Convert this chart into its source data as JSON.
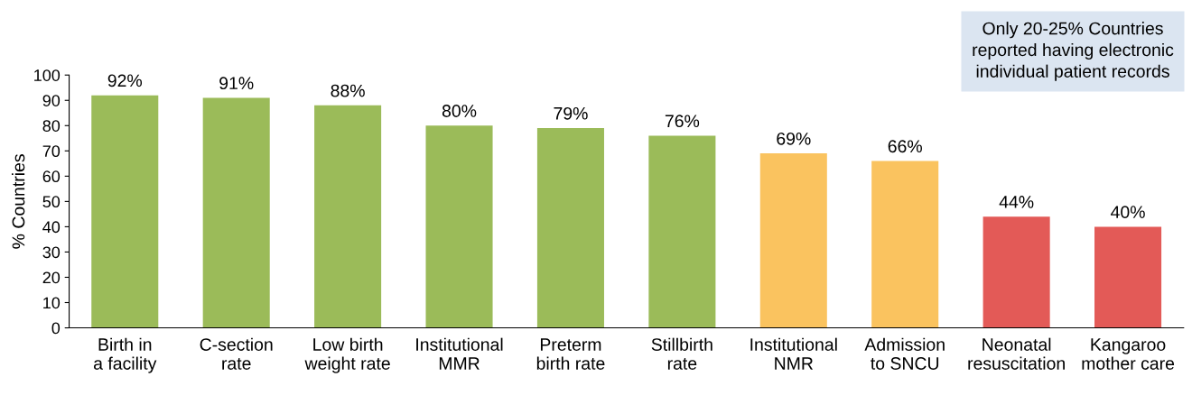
{
  "chart_data": {
    "type": "bar",
    "ylabel": "% Countries",
    "categories": [
      "Birth in\na facility",
      "C-section\nrate",
      "Low birth\nweight rate",
      "Institutional\nMMR",
      "Preterm\nbirth rate",
      "Stillbirth\nrate",
      "Institutional\nNMR",
      "Admission\nto SNCU",
      "Neonatal\nresuscitation",
      "Kangaroo\nmother care"
    ],
    "values": [
      92,
      91,
      88,
      80,
      79,
      76,
      69,
      66,
      44,
      40
    ],
    "value_labels": [
      "92%",
      "91%",
      "88%",
      "80%",
      "79%",
      "76%",
      "69%",
      "66%",
      "44%",
      "40%"
    ],
    "colors": [
      "#9bbb59",
      "#9bbb59",
      "#9bbb59",
      "#9bbb59",
      "#9bbb59",
      "#9bbb59",
      "#fac35f",
      "#fac35f",
      "#e35a57",
      "#e35a57"
    ],
    "ylim": [
      0,
      100
    ],
    "yticks": [
      0,
      10,
      20,
      30,
      40,
      50,
      60,
      70,
      80,
      90,
      100
    ],
    "grid": false,
    "annotations": [
      "Only 20-25% Countries\nreported having electronic\nindividual patient records"
    ]
  }
}
